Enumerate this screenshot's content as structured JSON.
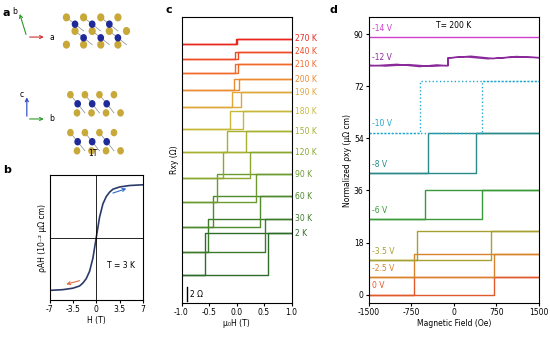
{
  "diagram": {
    "panel_label": "a",
    "top_view_axes": [
      "b",
      "a"
    ],
    "side_view_axes": [
      "c",
      "b"
    ],
    "phase_label": "1T"
  },
  "chart_data": [
    {
      "panel_label": "b",
      "type": "line",
      "xlabel": "H (T)",
      "ylabel": "ρAH (10⁻² μΩ cm)",
      "annotation": "T = 3 K",
      "xlim": [
        -7,
        7
      ],
      "xticks": [
        -7,
        -3.5,
        0,
        3.5,
        7
      ],
      "ylim": [
        -8.5,
        8.5
      ],
      "yticks": [],
      "tick_labels": "x",
      "series": [
        {
          "name": "ρAH",
          "color": "#2b3a67",
          "x": [
            -7,
            -5,
            -3.5,
            -2.5,
            -2,
            -1.5,
            -1,
            -0.5,
            0,
            0.5,
            1,
            1.5,
            2,
            2.5,
            3.5,
            5,
            7
          ],
          "values": [
            -7.2,
            -7.1,
            -6.9,
            -6.6,
            -6.2,
            -5.6,
            -4.6,
            -2.8,
            0,
            2.8,
            4.6,
            5.6,
            6.2,
            6.6,
            6.9,
            7.1,
            7.2
          ]
        }
      ]
    },
    {
      "panel_label": "c",
      "type": "line",
      "xlabel": "μ₀H (T)",
      "ylabel": "Rxy (Ω)",
      "xlim": [
        -1.0,
        1.0
      ],
      "xticks": [
        {
          "value": -1.0,
          "label": "-1.0"
        },
        {
          "value": -0.5,
          "label": "-0.5"
        },
        {
          "value": 0.0,
          "label": "0.0"
        },
        {
          "value": 0.5,
          "label": "0.5"
        },
        {
          "value": 1.0,
          "label": "1.0"
        }
      ],
      "ylim": [
        -2,
        39
      ],
      "yticks": [],
      "tick_labels": "x",
      "scale_bar": {
        "value": 2,
        "label": "2 Ω"
      },
      "series": [
        {
          "name": "2 K",
          "color": "#2f6b2a",
          "x": [
            -1,
            0.58,
            0.58,
            1,
            -0.58,
            -0.58,
            -1
          ],
          "values": [
            2.1,
            2.1,
            8.0,
            8.0,
            8.0,
            2.1,
            2.1
          ]
        },
        {
          "name": "30 K",
          "color": "#3d7a2a",
          "x": [
            -1,
            0.52,
            0.52,
            1,
            -0.52,
            -0.52,
            -1
          ],
          "values": [
            5.3,
            5.3,
            10.1,
            10.1,
            10.1,
            5.3,
            5.3
          ]
        },
        {
          "name": "60 K",
          "color": "#4e8a2c",
          "x": [
            -1,
            0.42,
            0.42,
            1,
            -0.42,
            -0.42,
            -1
          ],
          "values": [
            8.9,
            8.9,
            13.3,
            13.3,
            13.3,
            8.9,
            8.9
          ]
        },
        {
          "name": "90 K",
          "color": "#6b9a2e",
          "x": [
            -1,
            0.35,
            0.35,
            1,
            -0.35,
            -0.35,
            -1
          ],
          "values": [
            12.5,
            12.5,
            16.5,
            16.5,
            16.5,
            12.5,
            12.5
          ]
        },
        {
          "name": "120 K",
          "color": "#8aa82f",
          "x": [
            -1,
            0.25,
            0.25,
            1,
            -0.25,
            -0.25,
            -1
          ],
          "values": [
            16.0,
            16.0,
            19.6,
            19.6,
            19.6,
            16.0,
            16.0
          ]
        },
        {
          "name": "150 K",
          "color": "#a8b030",
          "x": [
            -1,
            0.18,
            0.18,
            1,
            -0.18,
            -0.18,
            -1
          ],
          "values": [
            19.6,
            19.6,
            22.6,
            22.6,
            22.6,
            19.6,
            19.6
          ]
        },
        {
          "name": "180 K",
          "color": "#c8b83a",
          "x": [
            -1,
            0.12,
            0.12,
            1,
            -0.12,
            -0.12,
            -1
          ],
          "values": [
            22.9,
            22.9,
            25.5,
            25.5,
            25.5,
            22.9,
            22.9
          ]
        },
        {
          "name": "190 K",
          "color": "#e0a63a",
          "x": [
            -1,
            0.08,
            0.08,
            1,
            -0.08,
            -0.08,
            -1
          ],
          "values": [
            26.1,
            26.1,
            28.2,
            28.2,
            28.2,
            26.1,
            26.1
          ]
        },
        {
          "name": "200 K",
          "color": "#ec8a30",
          "x": [
            -1,
            0.05,
            0.05,
            1,
            -0.05,
            -0.05,
            -1
          ],
          "values": [
            28.5,
            28.5,
            30.1,
            30.1,
            30.1,
            28.5,
            28.5
          ]
        },
        {
          "name": "210 K",
          "color": "#f06a2a",
          "x": [
            -1,
            0.03,
            0.03,
            1,
            -0.03,
            -0.03,
            -1
          ],
          "values": [
            30.9,
            30.9,
            32.2,
            32.2,
            32.2,
            30.9,
            30.9
          ]
        },
        {
          "name": "240 K",
          "color": "#ee4a26",
          "x": [
            -1,
            0.02,
            0.02,
            1,
            -0.02,
            -0.02,
            -1
          ],
          "values": [
            33.0,
            33.0,
            34.0,
            34.0,
            34.0,
            33.0,
            33.0
          ]
        },
        {
          "name": "270 K",
          "color": "#e8261e",
          "x": [
            -1,
            0.01,
            0.01,
            1,
            -0.01,
            -0.01,
            -1
          ],
          "values": [
            35.1,
            35.1,
            35.9,
            35.9,
            35.9,
            35.1,
            35.1
          ]
        }
      ]
    },
    {
      "panel_label": "d",
      "type": "line",
      "xlabel": "Magnetic Field (Oe)",
      "ylabel": "Normalized ρxy (μΩ cm)",
      "annotation": "T= 200 K",
      "xlim": [
        -1500,
        1500
      ],
      "xticks": [
        -1500,
        -750,
        0,
        750,
        1500
      ],
      "ylim": [
        -3,
        96
      ],
      "yticks": [
        0,
        18,
        36,
        54,
        72,
        90
      ],
      "series": [
        {
          "name": "0 V",
          "color": "#e05a2b",
          "line_style": "solid",
          "x": [
            -1500,
            700,
            700,
            1500,
            -700,
            -700,
            -1500
          ],
          "values": [
            0,
            0,
            6,
            6,
            6,
            0,
            0
          ]
        },
        {
          "name": "-2.5 V",
          "color": "#d9822b",
          "line_style": "solid",
          "x": [
            -1500,
            700,
            700,
            1500,
            -700,
            -700,
            -1500
          ],
          "values": [
            6,
            6,
            14,
            14,
            14,
            6,
            6
          ]
        },
        {
          "name": "-3.5 V",
          "color": "#a8a030",
          "line_style": "solid",
          "x": [
            -1500,
            650,
            650,
            1500,
            -650,
            -650,
            -1500
          ],
          "values": [
            12,
            12,
            22,
            22,
            22,
            12,
            12
          ]
        },
        {
          "name": "-6 V",
          "color": "#3a9a3a",
          "line_style": "solid",
          "x": [
            -1500,
            500,
            500,
            1500,
            -500,
            -500,
            -1500
          ],
          "values": [
            26,
            26,
            36,
            36,
            36,
            26,
            26
          ]
        },
        {
          "name": "-8 V",
          "color": "#2a8a8a",
          "line_style": "solid",
          "x": [
            -1500,
            400,
            400,
            1500,
            -450,
            -450,
            -1500
          ],
          "values": [
            42,
            42,
            56,
            56,
            56,
            42,
            42
          ]
        },
        {
          "name": "-10 V",
          "color": "#22a8d0",
          "line_style": "dotted",
          "x": [
            -1500,
            500,
            500,
            1500,
            -600,
            -600,
            -1500
          ],
          "values": [
            56,
            56,
            74,
            74,
            74,
            56,
            56
          ]
        },
        {
          "name": "-12 V",
          "color": "#8a2a9a",
          "line_style": "solid",
          "x": [
            -1500,
            -1000,
            -600,
            -300,
            -100,
            -100,
            300,
            700,
            1100,
            1500,
            1100,
            600,
            200,
            -100,
            -100,
            -400,
            -800,
            -1200,
            -1500
          ],
          "values": [
            79.0,
            79.6,
            78.8,
            79.4,
            79.1,
            81.8,
            82.4,
            81.6,
            82.3,
            81.9,
            82.1,
            81.5,
            82.2,
            81.8,
            79.2,
            78.9,
            79.5,
            79.0,
            79.3
          ]
        },
        {
          "name": "-14 V",
          "color": "#d040d0",
          "line_style": "solid",
          "x": [
            -1500,
            1500
          ],
          "values": [
            89,
            89
          ]
        }
      ]
    }
  ]
}
